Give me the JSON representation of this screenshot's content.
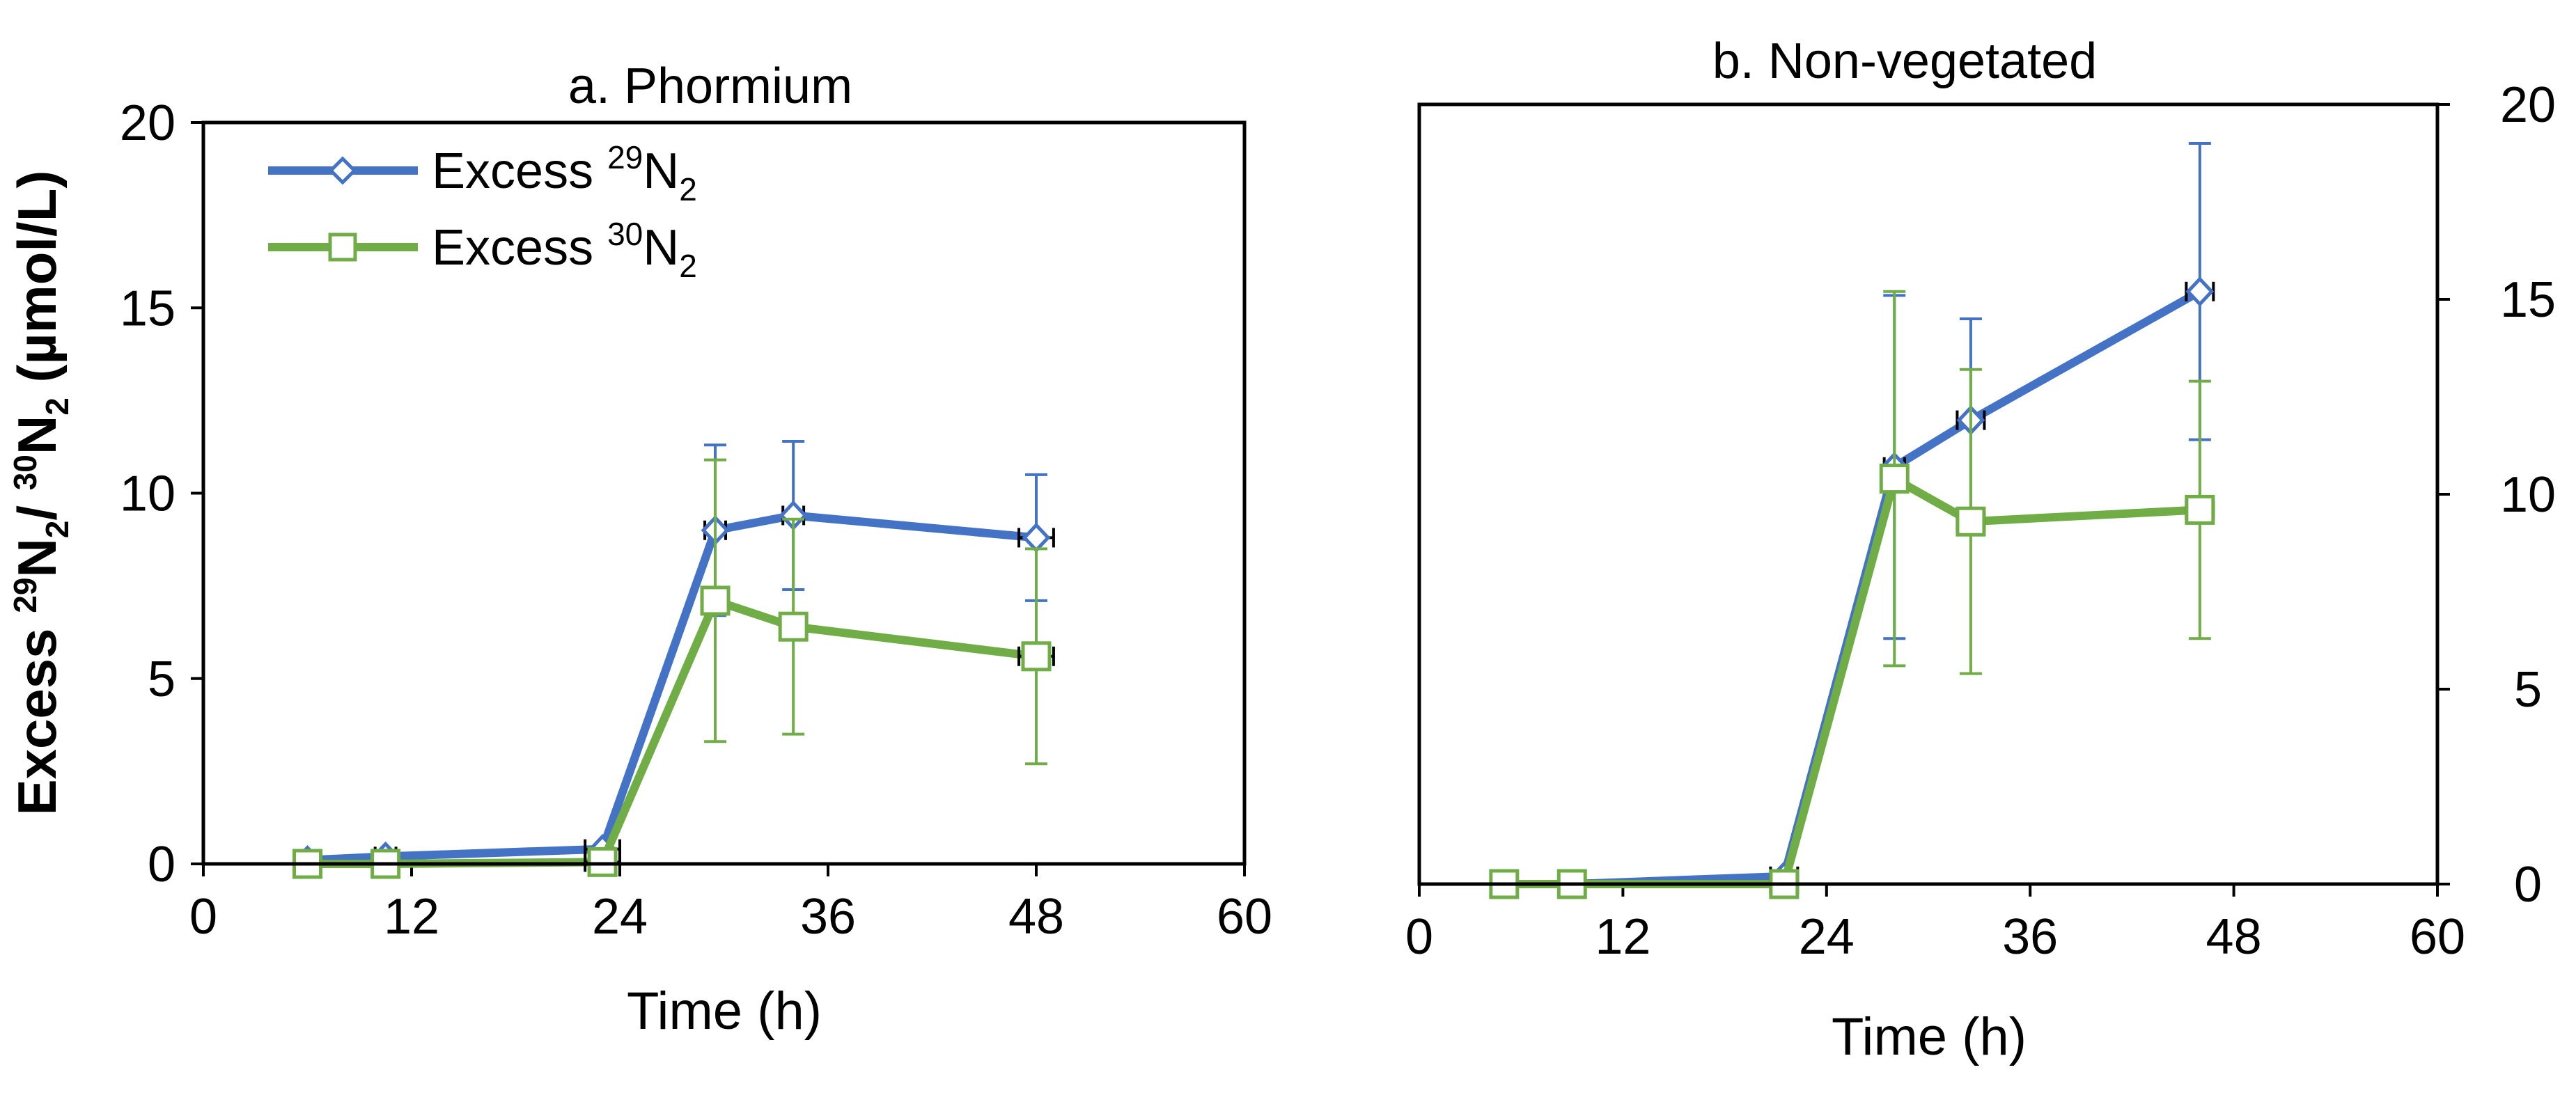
{
  "colors": {
    "series_29": "#4472C4",
    "series_30": "#70AD47",
    "axis": "#000000",
    "errbar_x": "#000000"
  },
  "legend": {
    "series_29": {
      "label_main": "Excess ",
      "iso": "29",
      "elem": "N",
      "sub": "2"
    },
    "series_30": {
      "label_main": "Excess ",
      "iso": "30",
      "elem": "N",
      "sub": "2"
    }
  },
  "y_axis_label": {
    "prefix": "Excess ",
    "iso1": "29",
    "elem1": "N",
    "sub1": "2",
    "sep": "/ ",
    "iso2": "30",
    "elem2": "N",
    "sub2": "2",
    "unit": " (µmol/L)"
  },
  "chart_data": [
    {
      "type": "line",
      "title": "a. Phormium",
      "xlabel": "Time (h)",
      "ylabel": "Excess 29N2/ 30N2 (µmol/L)",
      "xlim": [
        0,
        60
      ],
      "ylim": [
        0,
        20
      ],
      "xticks": [
        0,
        12,
        24,
        36,
        48,
        60
      ],
      "yticks": [
        0,
        5,
        10,
        15,
        20
      ],
      "yaxis_side": "left",
      "legend_position": "top-left",
      "series": [
        {
          "name": "Excess 29N2",
          "marker": "diamond",
          "points": [
            {
              "x": 6,
              "y": 0.1,
              "yerr": 0,
              "xerr": 0.6
            },
            {
              "x": 10.5,
              "y": 0.2,
              "yerr": 0,
              "xerr": 0.6
            },
            {
              "x": 23,
              "y": 0.4,
              "yerr": 0,
              "xerr": 1.0
            },
            {
              "x": 29.5,
              "y": 9.0,
              "yerr": 2.3,
              "xerr": 0.6
            },
            {
              "x": 34,
              "y": 9.4,
              "yerr": 2.0,
              "xerr": 0.6
            },
            {
              "x": 48,
              "y": 8.8,
              "yerr": 1.7,
              "xerr": 1.0
            }
          ]
        },
        {
          "name": "Excess 30N2",
          "marker": "square",
          "points": [
            {
              "x": 6,
              "y": 0.0,
              "yerr": 0,
              "xerr": 0.6
            },
            {
              "x": 10.5,
              "y": 0.0,
              "yerr": 0,
              "xerr": 0.6
            },
            {
              "x": 23,
              "y": 0.05,
              "yerr": 0,
              "xerr": 1.0
            },
            {
              "x": 29.5,
              "y": 7.1,
              "yerr": 3.8,
              "xerr": 0.6
            },
            {
              "x": 34,
              "y": 6.4,
              "yerr": 2.9,
              "xerr": 0.6
            },
            {
              "x": 48,
              "y": 5.6,
              "yerr": 2.9,
              "xerr": 1.0
            }
          ]
        }
      ]
    },
    {
      "type": "line",
      "title": "b. Non-vegetated",
      "xlabel": "Time (h)",
      "ylabel": "",
      "xlim": [
        0,
        60
      ],
      "ylim": [
        0,
        20
      ],
      "xticks": [
        0,
        12,
        24,
        36,
        48,
        60
      ],
      "yticks": [
        0,
        5,
        10,
        15,
        20
      ],
      "yaxis_side": "right",
      "legend_position": "none",
      "series": [
        {
          "name": "Excess 29N2",
          "marker": "diamond",
          "points": [
            {
              "x": 5,
              "y": 0.0,
              "yerr": 0,
              "xerr": 0.6
            },
            {
              "x": 9,
              "y": 0.0,
              "yerr": 0,
              "xerr": 0.6
            },
            {
              "x": 21.5,
              "y": 0.2,
              "yerr": 0,
              "xerr": 0.8
            },
            {
              "x": 28,
              "y": 10.7,
              "yerr": 4.4,
              "xerr": 0.6
            },
            {
              "x": 32.5,
              "y": 11.9,
              "yerr": 2.6,
              "xerr": 0.8
            },
            {
              "x": 46,
              "y": 15.2,
              "yerr": 3.8,
              "xerr": 0.8
            }
          ]
        },
        {
          "name": "Excess 30N2",
          "marker": "square",
          "points": [
            {
              "x": 5,
              "y": 0.0,
              "yerr": 0,
              "xerr": 0.6
            },
            {
              "x": 9,
              "y": 0.0,
              "yerr": 0,
              "xerr": 0.6
            },
            {
              "x": 21.5,
              "y": 0.0,
              "yerr": 0,
              "xerr": 0.8
            },
            {
              "x": 28,
              "y": 10.4,
              "yerr": 4.8,
              "xerr": 0.6
            },
            {
              "x": 32.5,
              "y": 9.3,
              "yerr": 3.9,
              "xerr": 0.8
            },
            {
              "x": 46,
              "y": 9.6,
              "yerr": 3.3,
              "xerr": 0.8
            }
          ]
        }
      ]
    }
  ]
}
